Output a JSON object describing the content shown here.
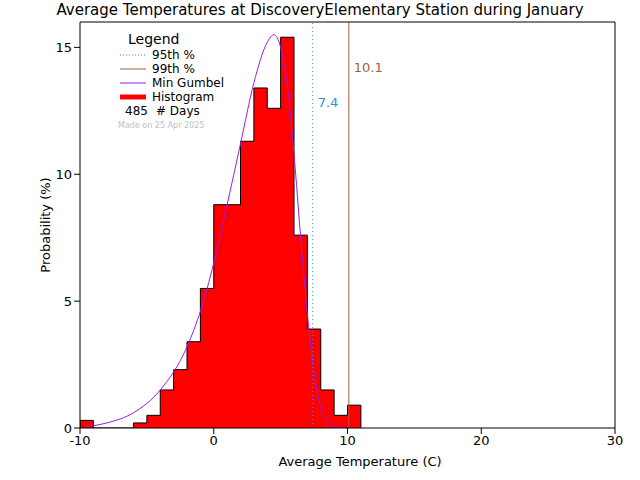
{
  "chart_data": {
    "type": "histogram",
    "title": "Average Temperatures at DiscoveryElementary Station during January",
    "x_label": "Average Temperature (C)",
    "y_label": "Probability (%)",
    "bins": [
      -10,
      -9,
      -8,
      -7,
      -6,
      -5,
      -4,
      -3,
      -2,
      -1,
      0,
      1,
      2,
      3,
      4,
      5,
      6,
      7,
      8,
      9,
      10,
      11
    ],
    "counts": [
      0.3,
      0,
      0,
      0,
      0.2,
      0.5,
      1.5,
      2.3,
      3.4,
      5.5,
      8.8,
      8.8,
      11.3,
      13.4,
      12.6,
      15.4,
      7.6,
      3.9,
      1.5,
      0.5,
      0.9
    ],
    "color": "#ff0000",
    "histogram_name": "Histogram",
    "series": [
      {
        "name": "Min Gumbel",
        "color": "#9a1ee6",
        "x": [
          -9.5,
          -8,
          -6,
          -4,
          -2,
          -1,
          0,
          1,
          2,
          3,
          4,
          4.5,
          5,
          5.5,
          6,
          6.5,
          7,
          7.5,
          8,
          8.5,
          9,
          10
        ],
        "values": [
          0.05,
          0.2,
          0.6,
          1.5,
          3.2,
          4.6,
          6.5,
          8.8,
          11.2,
          13.6,
          15.2,
          15.5,
          15.0,
          13.5,
          10.8,
          7.5,
          4.5,
          2.2,
          0.8,
          0.25,
          0.05,
          0
        ]
      }
    ],
    "percentiles": [
      {
        "name": "95th %",
        "value": 7.4,
        "color": "#2a8fe0",
        "line_style": "dotted"
      },
      {
        "name": "99th %",
        "value": 10.1,
        "color": "#a0603a",
        "line_style": "solid"
      }
    ],
    "xlim": [
      -10,
      30
    ],
    "xticks": [
      -10,
      0,
      10,
      20,
      30
    ],
    "ylim": [
      0,
      16
    ],
    "yticks": [
      0,
      5,
      10,
      15
    ],
    "grid": false,
    "legend": "upper left",
    "legend_title": "Legend",
    "days": 485,
    "days_label": "# Days",
    "annotations": [
      "Made on 25 Apr 2025"
    ]
  }
}
